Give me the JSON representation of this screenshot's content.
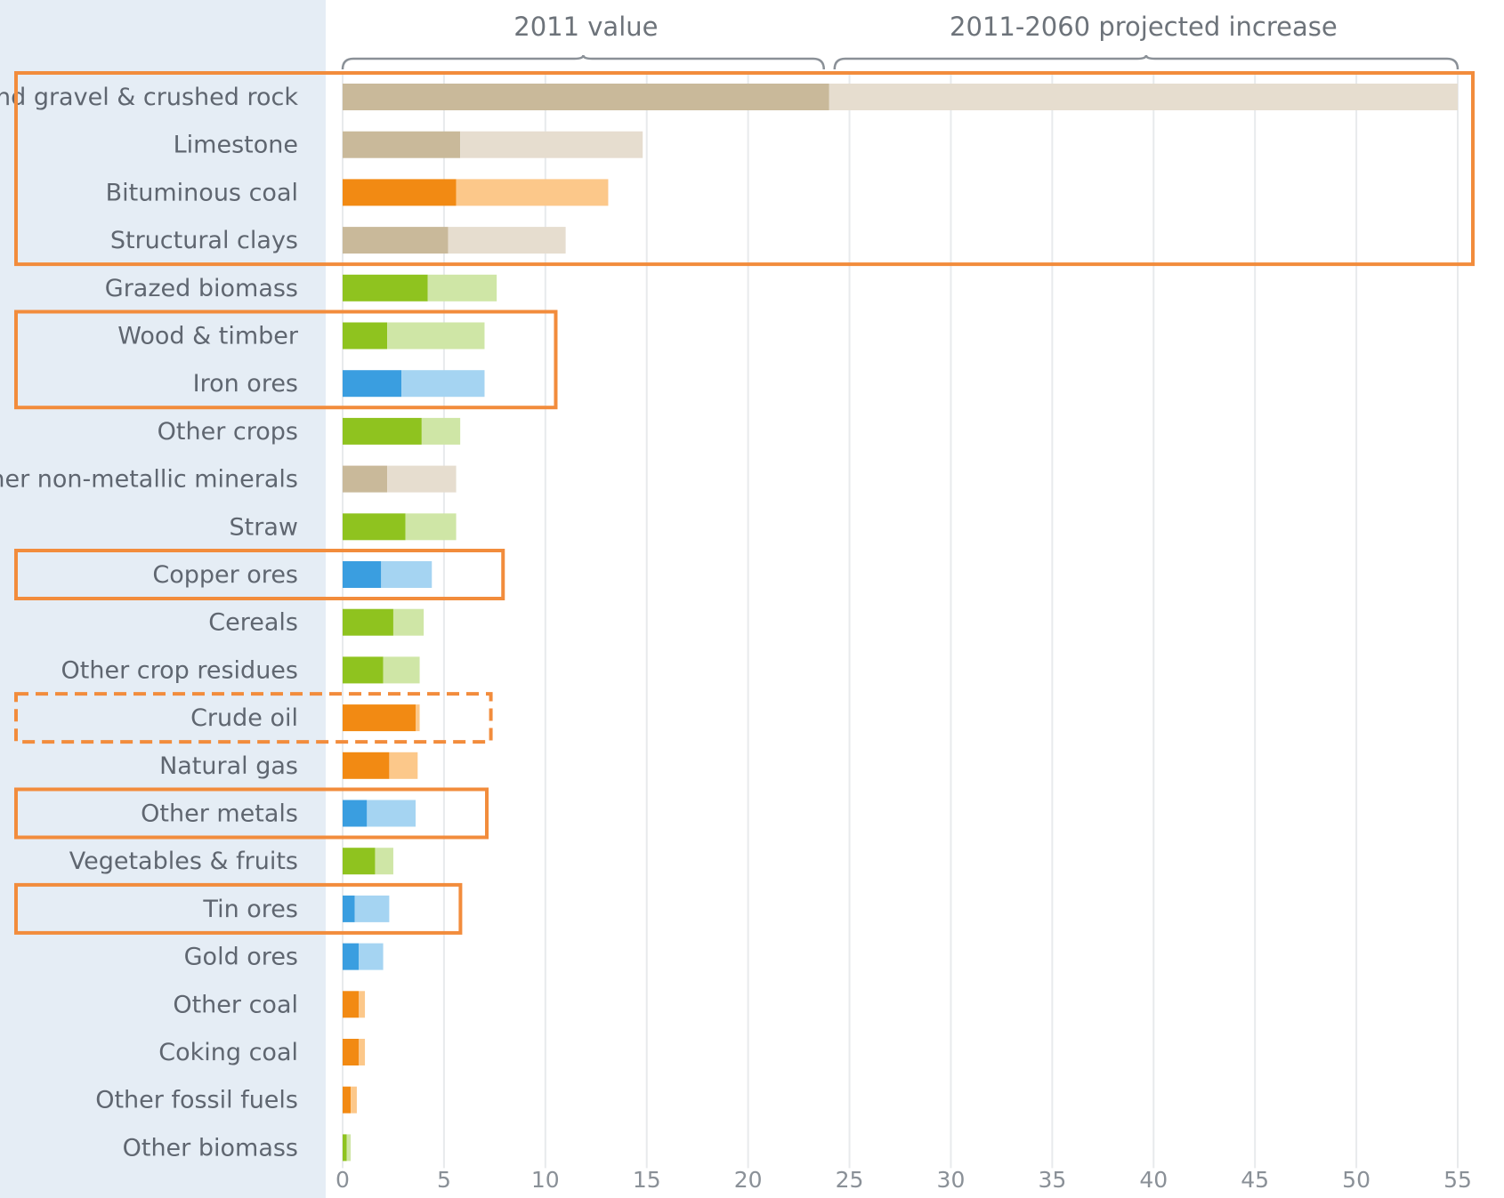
{
  "chart_data": {
    "type": "bar",
    "orientation": "horizontal",
    "stacked": true,
    "headers": {
      "base": "2011 value",
      "increase": "2011-2060 projected increase"
    },
    "categories": [
      "Sand gravel & crushed rock",
      "Limestone",
      "Bituminous coal",
      "Structural clays",
      "Grazed biomass",
      "Wood & timber",
      "Iron ores",
      "Other crops",
      "Other non-metallic minerals",
      "Straw",
      "Copper ores",
      "Cereals",
      "Other crop residues",
      "Crude oil",
      "Natural gas",
      "Other metals",
      "Vegetables & fruits",
      "Tin ores",
      "Gold ores",
      "Other coal",
      "Coking coal",
      "Other fossil fuels",
      "Other biomass"
    ],
    "groups": [
      "non-metallic",
      "non-metallic",
      "fossil",
      "non-metallic",
      "biomass",
      "biomass",
      "metal",
      "biomass",
      "non-metallic",
      "biomass",
      "metal",
      "biomass",
      "biomass",
      "fossil",
      "fossil",
      "metal",
      "biomass",
      "metal",
      "metal",
      "fossil",
      "fossil",
      "fossil",
      "biomass"
    ],
    "series": [
      {
        "key": "base",
        "values": [
          24.0,
          5.8,
          5.6,
          5.2,
          4.2,
          2.2,
          2.9,
          3.9,
          2.2,
          3.1,
          1.9,
          2.5,
          2.0,
          3.6,
          2.3,
          1.2,
          1.6,
          0.6,
          0.8,
          0.8,
          0.8,
          0.4,
          0.2
        ]
      },
      {
        "key": "increase",
        "values": [
          31.0,
          9.0,
          7.5,
          5.8,
          3.4,
          4.8,
          4.1,
          1.9,
          3.4,
          2.5,
          2.5,
          1.5,
          1.8,
          0.2,
          1.4,
          2.4,
          0.9,
          1.7,
          1.2,
          0.3,
          0.3,
          0.3,
          0.2
        ]
      }
    ],
    "xticks": [
      "0",
      "5",
      "10",
      "15",
      "20",
      "25",
      "30",
      "35",
      "40",
      "45",
      "50",
      "55"
    ],
    "xlim": [
      0,
      55
    ],
    "grid": true,
    "colors": {
      "non-metallic": {
        "base": "#c9b99a",
        "increase": "#e6ddcf"
      },
      "fossil": {
        "base": "#f28a13",
        "increase": "#fcc88a"
      },
      "biomass": {
        "base": "#8fc31f",
        "increase": "#cfe6a6"
      },
      "metal": {
        "base": "#3a9ee0",
        "increase": "#a5d4f2"
      },
      "highlight": "#f28c3c",
      "sidebar": "#e5edf5",
      "grid": "#e8eaec"
    },
    "highlights": [
      {
        "categories": [
          "Sand gravel & crushed rock",
          "Limestone",
          "Bituminous coal",
          "Structural clays"
        ],
        "style": "solid"
      },
      {
        "categories": [
          "Wood & timber",
          "Iron ores"
        ],
        "style": "solid"
      },
      {
        "categories": [
          "Copper ores"
        ],
        "style": "solid"
      },
      {
        "categories": [
          "Crude oil"
        ],
        "style": "dashed"
      },
      {
        "categories": [
          "Other metals"
        ],
        "style": "solid"
      },
      {
        "categories": [
          "Tin ores"
        ],
        "style": "solid"
      }
    ]
  }
}
